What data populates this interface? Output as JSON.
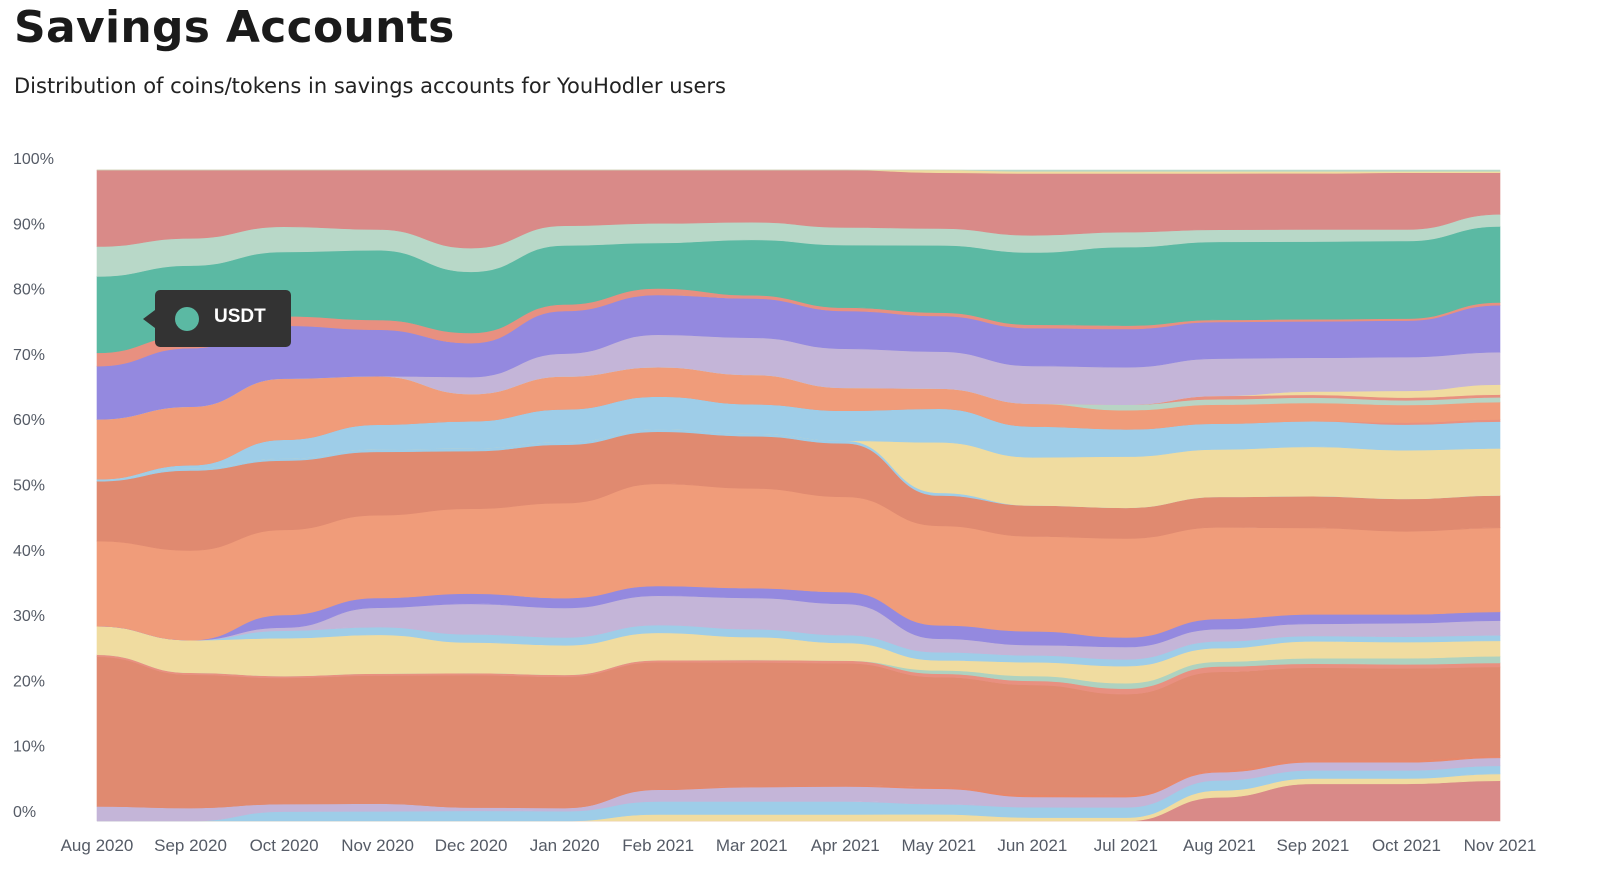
{
  "title": "Savings Accounts",
  "subtitle": "Distribution of coins/tokens in savings accounts for YouHodler users",
  "tooltip": {
    "label": "USDT",
    "color": "#5bb9a3"
  },
  "chart_data": {
    "type": "area",
    "stacked": true,
    "normalized": true,
    "categories": [
      "Aug 2020",
      "Sep 2020",
      "Oct 2020",
      "Nov 2020",
      "Dec 2020",
      "Jan 2020",
      "Feb 2021",
      "Mar 2021",
      "Apr 2021",
      "May 2021",
      "Jun 2021",
      "Jul 2021",
      "Aug 2021",
      "Sep 2021",
      "Oct 2021",
      "Nov 2021"
    ],
    "y_ticks": [
      "0%",
      "10%",
      "20%",
      "30%",
      "40%",
      "50%",
      "60%",
      "70%",
      "80%",
      "90%",
      "100%"
    ],
    "ylim": [
      0,
      100
    ],
    "series": [
      {
        "color": "#d98a88",
        "values": [
          0,
          0,
          0,
          0,
          0,
          0,
          0,
          0,
          0,
          0,
          0,
          0,
          3.5,
          5.5,
          5.5,
          6
        ]
      },
      {
        "color": "#f0dca0",
        "values": [
          0,
          0,
          0,
          0,
          0,
          0,
          1,
          1,
          1,
          1,
          0.5,
          0.5,
          1,
          0.8,
          0.8,
          1
        ]
      },
      {
        "color": "#9ecde8",
        "values": [
          0,
          0,
          1.5,
          1.5,
          1.5,
          1.5,
          2,
          2,
          2,
          1.5,
          1.5,
          1.5,
          1.5,
          1.2,
          1.2,
          1.2
        ]
      },
      {
        "color": "#c4b5d8",
        "values": [
          2.2,
          2,
          1.2,
          1.2,
          0.5,
          0.5,
          1.8,
          2.2,
          2.3,
          2.3,
          1.5,
          1.5,
          1.2,
          1.2,
          1.2,
          1.2
        ]
      },
      {
        "color": "#e8876a",
        "values": [
          0,
          0,
          0,
          0,
          0,
          0,
          0.1,
          0.1,
          0.1,
          0.3,
          0.3,
          0.3,
          0.3,
          0.3,
          0.3,
          0.3
        ]
      },
      {
        "color": "#e08a70",
        "values": [
          22.5,
          20.5,
          20,
          19.8,
          19.5,
          20,
          19.5,
          19,
          18.8,
          16.3,
          16,
          14.8,
          14.5,
          13.7,
          13.6,
          13.2
        ]
      },
      {
        "color": "#e89080",
        "values": [
          0.3,
          0.3,
          0.3,
          0.3,
          0.3,
          0.3,
          0.3,
          0.4,
          0.4,
          0.5,
          0.6,
          0.8,
          0.8,
          0.6,
          0.6,
          0.6
        ]
      },
      {
        "color": "#aed2c0",
        "values": [
          0,
          0,
          0,
          0,
          0,
          0,
          0,
          0,
          0,
          0.5,
          0.7,
          0.8,
          0.7,
          0.8,
          0.9,
          1
        ]
      },
      {
        "color": "#f0dca0",
        "values": [
          4.3,
          5,
          6,
          6,
          4.5,
          4.5,
          4.2,
          3.5,
          2.7,
          1.5,
          2,
          2.5,
          2,
          2.5,
          2.4,
          2.3
        ]
      },
      {
        "color": "#9ecde8",
        "values": [
          0,
          0,
          1.2,
          1.2,
          1.2,
          1.2,
          1.2,
          1.2,
          1.2,
          1.2,
          1,
          1,
          1,
          0.8,
          0.8,
          0.8
        ]
      },
      {
        "color": "#c4b5d8",
        "values": [
          0,
          0,
          0.5,
          3,
          4.5,
          4.5,
          4.5,
          4.8,
          4.8,
          2,
          1.5,
          1.8,
          1.8,
          1.8,
          2,
          2.2
        ]
      },
      {
        "color": "#9489df",
        "values": [
          0,
          0,
          2,
          1.5,
          1.5,
          1.5,
          1.5,
          1.5,
          1.8,
          2,
          2,
          1.4,
          1.5,
          1.4,
          1.3,
          1.3
        ]
      },
      {
        "color": "#f09c7a",
        "values": [
          12.8,
          13.8,
          13.5,
          12.8,
          12.5,
          14.5,
          15.7,
          15.3,
          14.6,
          14.8,
          13.8,
          14.5,
          13.5,
          12.8,
          12.3,
          12.5
        ]
      },
      {
        "color": "#e08a70",
        "values": [
          9,
          12.3,
          11,
          9.8,
          8.5,
          8.9,
          8,
          8,
          8.2,
          4.5,
          4.5,
          4.5,
          4.5,
          4.7,
          4.8,
          4.8
        ]
      },
      {
        "color": "#9ecde8",
        "values": [
          0.3,
          0.3,
          0.3,
          0.4,
          0.4,
          0.4,
          0.4,
          0.4,
          0.4,
          0.4,
          0,
          0,
          0,
          0,
          0,
          0
        ]
      },
      {
        "color": "#f0dca0",
        "values": [
          0,
          0,
          0,
          0,
          0,
          0,
          0,
          0,
          0,
          7.5,
          7,
          7.5,
          7,
          7.3,
          7.2,
          7
        ]
      },
      {
        "color": "#9ecde8",
        "values": [
          0,
          0.5,
          3,
          3.8,
          4,
          5,
          5,
          4.5,
          4.6,
          5,
          4.5,
          4,
          3.8,
          3.8,
          3.8,
          4
        ]
      },
      {
        "color": "#e89080",
        "values": [
          0,
          0,
          0,
          0,
          0,
          0,
          0,
          0,
          0,
          0,
          0,
          0,
          0,
          0,
          0.3,
          0.3
        ]
      },
      {
        "color": "#f09c7a",
        "values": [
          9,
          9,
          9.7,
          7.5,
          4,
          5,
          4.5,
          4.5,
          3.5,
          3,
          3.3,
          2.8,
          2.8,
          2.7,
          2.6,
          2.6
        ]
      },
      {
        "color": "#b8d4c4",
        "values": [
          0,
          0,
          0,
          0,
          0,
          0,
          0,
          0,
          0,
          0,
          0,
          0.8,
          0.8,
          0.8,
          0.7,
          0.7
        ]
      },
      {
        "color": "#e89080",
        "values": [
          0,
          0,
          0,
          0,
          0,
          0,
          0,
          0,
          0,
          0,
          0,
          0,
          0.5,
          0.4,
          0.4,
          0.4
        ]
      },
      {
        "color": "#f0dca0",
        "values": [
          0,
          0,
          0,
          0,
          0,
          0,
          0,
          0,
          0,
          0,
          0,
          0,
          0,
          0.5,
          1,
          1.5
        ]
      },
      {
        "color": "#c4b5d8",
        "values": [
          0,
          0,
          0,
          0,
          2.5,
          3.5,
          5,
          5.7,
          6,
          5.5,
          5.5,
          5.5,
          5.5,
          5,
          5,
          4.8
        ]
      },
      {
        "color": "#9489df",
        "values": [
          8,
          9,
          8.4,
          7.2,
          5,
          6.5,
          6.1,
          6,
          5.8,
          5.3,
          5.5,
          5.6,
          5.4,
          5.4,
          5.4,
          7
        ]
      },
      {
        "color": "#e89080",
        "values": [
          2,
          2,
          1.5,
          1.5,
          1.5,
          1,
          1,
          0.5,
          0.5,
          0.5,
          0.5,
          0.5,
          0.3,
          0.3,
          0.3,
          0.4
        ]
      },
      {
        "color": "#5bb9a3",
        "values": [
          11.5,
          10.7,
          10.2,
          10.8,
          9,
          9,
          7,
          8.5,
          9.6,
          10,
          10.5,
          11.5,
          11.5,
          11.5,
          11.5,
          11.3
        ]
      },
      {
        "color": "#b8d8c8",
        "values": [
          4.5,
          4.2,
          4,
          3.2,
          3.5,
          3,
          3,
          2.7,
          2.7,
          2.5,
          2.5,
          2.2,
          1.8,
          1.8,
          1.7,
          1.8
        ]
      },
      {
        "color": "#d98a88",
        "values": [
          11.5,
          10.5,
          9,
          9.2,
          11.5,
          8.5,
          8.2,
          8,
          8.8,
          8.3,
          9,
          8.6,
          8.3,
          8.3,
          8.4,
          6.2
        ]
      },
      {
        "color": "#f0dca0",
        "values": [
          0,
          0,
          0,
          0,
          0,
          0,
          0,
          0,
          0,
          0.4,
          0.3,
          0.3,
          0.3,
          0.3,
          0.2,
          0.2
        ]
      },
      {
        "color": "#b8d8c8",
        "values": [
          0,
          0,
          0,
          0,
          0,
          0,
          0,
          0,
          0,
          0,
          0.2,
          0.2,
          0.2,
          0.2,
          0.2,
          0.2
        ]
      }
    ]
  }
}
